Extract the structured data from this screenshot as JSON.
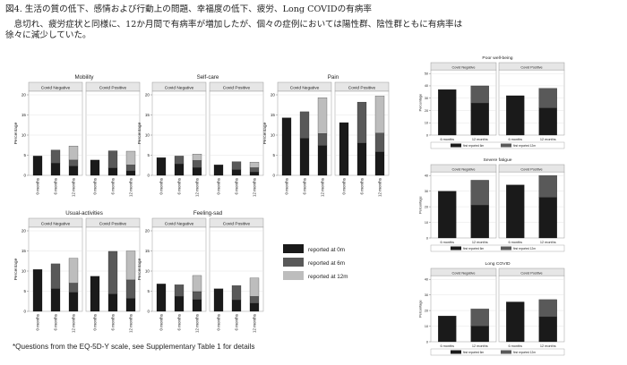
{
  "figure": {
    "title": "図4. 生活の質の低下、感情および行動上の問題、幸福度の低下、疲労、Long COVIDの有病率",
    "body": "息切れ、疲労症状と同様に、12か月間で有病率が増加したが、個々の症例においては陽性群、陰性群ともに有病率は徐々に減少していた。",
    "footnote": "*Questions from the EQ-5D-Y scale, see Supplementary Table 1 for details"
  },
  "colors": {
    "m0": "#1a1a1a",
    "m6": "#595959",
    "m12": "#bdbdbd",
    "header": "#e6e6e6",
    "frame": "#999999"
  },
  "chart_data": [
    {
      "type": "bar",
      "title": "Mobility",
      "panels": [
        "Covid Negative",
        "Covid Positive"
      ],
      "categories": [
        "0 months",
        "6 months",
        "12 months"
      ],
      "ylabel": "Percentage",
      "ylim": [
        0,
        20
      ],
      "yticks": [
        0,
        5,
        10,
        15,
        20
      ],
      "series": [
        {
          "name": "reported at 0m",
          "values": [
            [
              4.8,
              3.0,
              2.3
            ],
            [
              3.8,
              1.8,
              1.1
            ]
          ]
        },
        {
          "name": "reported at 6m",
          "values": [
            [
              0,
              3.3,
              1.5
            ],
            [
              0,
              4.3,
              1.5
            ]
          ]
        },
        {
          "name": "reported at 12m",
          "values": [
            [
              0,
              0,
              3.5
            ],
            [
              0,
              0,
              3.4
            ]
          ]
        }
      ]
    },
    {
      "type": "bar",
      "title": "Self-care",
      "panels": [
        "Covid Negative",
        "Covid Positive"
      ],
      "categories": [
        "0 months",
        "6 months",
        "12 months"
      ],
      "ylabel": "Percentage",
      "ylim": [
        0,
        20
      ],
      "yticks": [
        0,
        5,
        10,
        15,
        20
      ],
      "series": [
        {
          "name": "reported at 0m",
          "values": [
            [
              4.4,
              2.8,
              1.9
            ],
            [
              2.6,
              1.4,
              0.8
            ]
          ]
        },
        {
          "name": "reported at 6m",
          "values": [
            [
              0,
              2.0,
              1.8
            ],
            [
              0,
              2.0,
              1.1
            ]
          ]
        },
        {
          "name": "reported at 12m",
          "values": [
            [
              0,
              0,
              1.6
            ],
            [
              0,
              0,
              1.4
            ]
          ]
        }
      ]
    },
    {
      "type": "bar",
      "title": "Pain",
      "panels": [
        "Covid Negative",
        "Covid Positive"
      ],
      "categories": [
        "0 months",
        "6 months",
        "12 months"
      ],
      "ylabel": "Percentage",
      "ylim": [
        0,
        20
      ],
      "yticks": [
        0,
        5,
        10,
        15,
        20
      ],
      "series": [
        {
          "name": "reported at 0m",
          "values": [
            [
              14.3,
              9.2,
              7.4
            ],
            [
              13.1,
              8.0,
              5.8
            ]
          ]
        },
        {
          "name": "reported at 6m",
          "values": [
            [
              0,
              6.6,
              3.0
            ],
            [
              0,
              10.2,
              4.7
            ]
          ]
        },
        {
          "name": "reported at 12m",
          "values": [
            [
              0,
              0,
              8.9
            ],
            [
              0,
              0,
              9.2
            ]
          ]
        }
      ]
    },
    {
      "type": "bar",
      "title": "Usual-activities",
      "panels": [
        "Covid Negative",
        "Covid Positive"
      ],
      "categories": [
        "0 months",
        "6 months",
        "12 months"
      ],
      "ylabel": "Percentage",
      "ylim": [
        0,
        20
      ],
      "yticks": [
        0,
        5,
        10,
        15,
        20
      ],
      "series": [
        {
          "name": "reported at 0m",
          "values": [
            [
              10.4,
              5.6,
              4.7
            ],
            [
              8.7,
              4.3,
              3.2
            ]
          ]
        },
        {
          "name": "reported at 6m",
          "values": [
            [
              0,
              6.2,
              2.3
            ],
            [
              0,
              10.6,
              4.6
            ]
          ]
        },
        {
          "name": "reported at 12m",
          "values": [
            [
              0,
              0,
              6.2
            ],
            [
              0,
              0,
              7.2
            ]
          ]
        }
      ]
    },
    {
      "type": "bar",
      "title": "Feeling-sad",
      "panels": [
        "Covid Negative",
        "Covid Positive"
      ],
      "categories": [
        "0 months",
        "6 months",
        "12 months"
      ],
      "ylabel": "Percentage",
      "ylim": [
        0,
        20
      ],
      "yticks": [
        0,
        5,
        10,
        15,
        20
      ],
      "series": [
        {
          "name": "reported at 0m",
          "values": [
            [
              6.8,
              3.7,
              2.9
            ],
            [
              5.6,
              2.8,
              2.0
            ]
          ]
        },
        {
          "name": "reported at 6m",
          "values": [
            [
              0,
              2.9,
              2.0
            ],
            [
              0,
              3.6,
              1.7
            ]
          ]
        },
        {
          "name": "reported at 12m",
          "values": [
            [
              0,
              0,
              4.0
            ],
            [
              0,
              0,
              4.6
            ]
          ]
        }
      ]
    },
    {
      "type": "bar",
      "title": "Poor well-being",
      "panels": [
        "Covid Negative",
        "Covid Positive"
      ],
      "categories": [
        "6 months",
        "12 months"
      ],
      "ylabel": "Percentage",
      "ylim": [
        0,
        50
      ],
      "yticks": [
        0,
        10,
        20,
        30,
        40,
        50
      ],
      "series": [
        {
          "name": "first reported 6m",
          "values": [
            [
              37,
              26
            ],
            [
              32,
              22
            ]
          ]
        },
        {
          "name": "first reported 12m",
          "values": [
            [
              0,
              14
            ],
            [
              0,
              16
            ]
          ]
        }
      ]
    },
    {
      "type": "bar",
      "title": "Severe fatigue",
      "panels": [
        "Covid Negative",
        "Covid Positive"
      ],
      "categories": [
        "6 months",
        "12 months"
      ],
      "ylabel": "Percentage",
      "ylim": [
        0,
        40
      ],
      "yticks": [
        0,
        10,
        20,
        30,
        40
      ],
      "series": [
        {
          "name": "first reported 6m",
          "values": [
            [
              30,
              21
            ],
            [
              34,
              26
            ]
          ]
        },
        {
          "name": "first reported 12m",
          "values": [
            [
              0,
              16
            ],
            [
              0,
              14
            ]
          ]
        }
      ]
    },
    {
      "type": "bar",
      "title": "Long COVID",
      "panels": [
        "Covid Negative",
        "Covid Positive"
      ],
      "categories": [
        "6 months",
        "12 months"
      ],
      "ylabel": "Percentage",
      "ylim": [
        0,
        40
      ],
      "yticks": [
        0,
        10,
        20,
        30,
        40
      ],
      "series": [
        {
          "name": "first reported 6m",
          "values": [
            [
              16.5,
              10
            ],
            [
              25.5,
              16
            ]
          ]
        },
        {
          "name": "first reported 12m",
          "values": [
            [
              0,
              11
            ],
            [
              0,
              11
            ]
          ]
        }
      ]
    }
  ],
  "legend_left": [
    "reported at 0m",
    "reported at 6m",
    "reported at 12m"
  ]
}
